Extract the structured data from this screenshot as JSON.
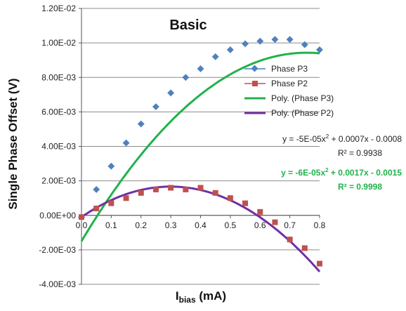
{
  "chart_data": {
    "type": "scatter",
    "title": "Basic",
    "xlabel": "I",
    "xlabel_sub": "bias",
    "xlabel_unit": " (mA)",
    "ylabel": "Single Phase Offset (V)",
    "xlim": [
      0,
      0.8
    ],
    "ylim": [
      -0.004,
      0.012
    ],
    "x_ticks": [
      "0.0",
      "0.1",
      "0.2",
      "0.3",
      "0.4",
      "0.5",
      "0.6",
      "0.7",
      "0.8"
    ],
    "y_ticks": [
      "1.20E-02",
      "1.00E-02",
      "8.00E-03",
      "6.00E-03",
      "4.00E-03",
      "2.00E-03",
      "0.00E+00",
      "-2.00E-03",
      "-4.00E-03"
    ],
    "grid": "horizontal",
    "legend_position": "right",
    "series": [
      {
        "name": "Phase P3",
        "marker": "diamond",
        "color": "#4F81BD",
        "x": [
          0,
          0.05,
          0.1,
          0.15,
          0.2,
          0.25,
          0.3,
          0.35,
          0.4,
          0.45,
          0.5,
          0.55,
          0.6,
          0.65,
          0.7,
          0.75,
          0.8
        ],
        "y": [
          -0.0001,
          0.0015,
          0.00285,
          0.0042,
          0.0053,
          0.0063,
          0.0071,
          0.008,
          0.0085,
          0.0092,
          0.0096,
          0.00995,
          0.0101,
          0.0102,
          0.0102,
          0.0099,
          0.0096
        ]
      },
      {
        "name": "Phase P2",
        "marker": "square",
        "color": "#C0504D",
        "x": [
          0,
          0.05,
          0.1,
          0.15,
          0.2,
          0.25,
          0.3,
          0.35,
          0.4,
          0.45,
          0.5,
          0.55,
          0.6,
          0.65,
          0.7,
          0.75,
          0.8
        ],
        "y": [
          -0.0001,
          0.0004,
          0.0007,
          0.001,
          0.0013,
          0.0015,
          0.0016,
          0.0015,
          0.0016,
          0.0013,
          0.001,
          0.0007,
          0.0002,
          -0.0004,
          -0.0014,
          -0.0019,
          -0.0028
        ]
      }
    ],
    "trendlines": [
      {
        "name": "Poly. (Phase  P3)",
        "color": "#22B14C",
        "coeffs": [
          -0.0015,
          0.0289,
          -0.0191
        ]
      },
      {
        "name": "Poly. (Phase  P2)",
        "color": "#7030A0",
        "coeffs": [
          -0.0001,
          0.0118,
          -0.0197
        ]
      }
    ],
    "annotations": [
      {
        "line1_pre": "y = -5E-05x",
        "line1_post": " + 0.0007x - 0.0008",
        "line2": "R² = 0.9938",
        "color": "#222222"
      },
      {
        "line1_pre": "y = -6E-05x",
        "line1_post": " + 0.0017x - 0.0015",
        "line2": "R² = 0.9998",
        "color": "#22B14C"
      }
    ]
  }
}
